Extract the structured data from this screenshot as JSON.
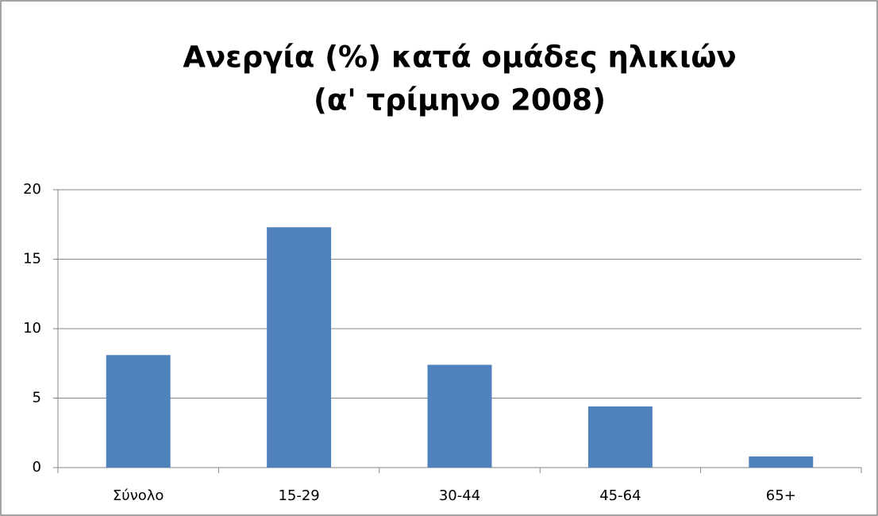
{
  "chart_data": {
    "type": "bar",
    "title": [
      "Ανεργία (%) κατά ομάδες ηλικιών",
      "(α' τρίμηνο 2008)"
    ],
    "categories": [
      "Σύνολο",
      "15-29",
      "30-44",
      "45-64",
      "65+"
    ],
    "values": [
      8.1,
      17.3,
      7.4,
      4.4,
      0.8
    ],
    "color": "#4f81bd",
    "ylim": [
      0,
      20
    ],
    "yticks": [
      0,
      5,
      10,
      15,
      20
    ],
    "grid": true
  }
}
